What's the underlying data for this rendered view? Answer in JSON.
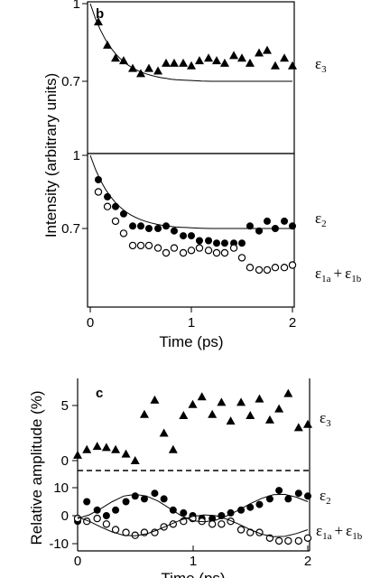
{
  "chart_data": [
    {
      "panel": "b",
      "type": "scatter",
      "x_unit": "ps",
      "xlim": [
        0,
        2
      ],
      "ylim": [
        0.5,
        1.0
      ],
      "x_ticks": [
        0,
        1,
        2
      ],
      "y_ticks": [
        0.7,
        1
      ],
      "ylabel": "Intensity (arbitrary units)",
      "xlabel": "Time (ps)",
      "sub": [
        {
          "ylim": [
            0.5,
            1.0
          ],
          "y_tick_labels": [
            "0.7",
            "1"
          ],
          "series": [
            {
              "name": "ε3",
              "label": "ε",
              "subscript": "3",
              "marker": "filled-triangle",
              "x": [
                0.08,
                0.17,
                0.25,
                0.33,
                0.42,
                0.5,
                0.58,
                0.67,
                0.75,
                0.83,
                0.92,
                1.0,
                1.08,
                1.17,
                1.25,
                1.33,
                1.42,
                1.5,
                1.58,
                1.67,
                1.75,
                1.83,
                1.92,
                2.0
              ],
              "y": [
                0.93,
                0.84,
                0.79,
                0.78,
                0.75,
                0.73,
                0.75,
                0.74,
                0.77,
                0.77,
                0.77,
                0.76,
                0.78,
                0.79,
                0.78,
                0.77,
                0.8,
                0.79,
                0.77,
                0.81,
                0.82,
                0.76,
                0.79,
                0.76
              ]
            },
            {
              "name": "fit",
              "line": true,
              "x": [
                0,
                0.05,
                0.1,
                0.15,
                0.2,
                0.25,
                0.3,
                0.35,
                0.4,
                0.45,
                0.5,
                0.55,
                0.6,
                0.65,
                0.7,
                0.75,
                0.8,
                0.85,
                0.9,
                0.95,
                1.0,
                1.1,
                1.2,
                1.3,
                1.4,
                1.5,
                1.6,
                1.7,
                1.8,
                1.9,
                2.0
              ],
              "y": [
                1.0,
                0.944,
                0.898,
                0.861,
                0.831,
                0.806,
                0.786,
                0.769,
                0.756,
                0.745,
                0.736,
                0.729,
                0.723,
                0.718,
                0.714,
                0.711,
                0.708,
                0.706,
                0.705,
                0.704,
                0.703,
                0.701,
                0.7,
                0.7,
                0.7,
                0.7,
                0.7,
                0.7,
                0.7,
                0.7,
                0.7
              ]
            }
          ]
        },
        {
          "ylim": [
            0.5,
            1.0
          ],
          "y_tick_labels": [
            "0.7",
            "1"
          ],
          "series": [
            {
              "name": "ε2",
              "label": "ε",
              "subscript": "2",
              "marker": "filled-circle",
              "x": [
                0.08,
                0.17,
                0.25,
                0.33,
                0.42,
                0.5,
                0.58,
                0.67,
                0.75,
                0.83,
                0.92,
                1.0,
                1.08,
                1.17,
                1.25,
                1.33,
                1.42,
                1.5,
                1.58,
                1.67,
                1.75,
                1.83,
                1.92,
                2.0
              ],
              "y": [
                0.9,
                0.83,
                0.79,
                0.76,
                0.71,
                0.71,
                0.7,
                0.7,
                0.71,
                0.69,
                0.67,
                0.67,
                0.65,
                0.65,
                0.64,
                0.64,
                0.64,
                0.64,
                0.71,
                0.69,
                0.73,
                0.7,
                0.73,
                0.71
              ],
              "style": "filled"
            },
            {
              "name": "ε1a + ε1b",
              "label": "ε",
              "subscript": "1a",
              "label2": "ε",
              "subscript2": "1b",
              "marker": "open-circle",
              "x": [
                0.08,
                0.17,
                0.25,
                0.33,
                0.42,
                0.5,
                0.58,
                0.67,
                0.75,
                0.83,
                0.92,
                1.0,
                1.08,
                1.17,
                1.25,
                1.33,
                1.42,
                1.5,
                1.58,
                1.67,
                1.75,
                1.83,
                1.92,
                2.0
              ],
              "y": [
                0.85,
                0.79,
                0.73,
                0.68,
                0.63,
                0.63,
                0.63,
                0.62,
                0.6,
                0.62,
                0.6,
                0.61,
                0.62,
                0.61,
                0.6,
                0.6,
                0.62,
                0.58,
                0.54,
                0.53,
                0.53,
                0.54,
                0.54,
                0.55
              ]
            },
            {
              "name": "fit",
              "line": true,
              "x": [
                0,
                0.05,
                0.1,
                0.15,
                0.2,
                0.25,
                0.3,
                0.35,
                0.4,
                0.45,
                0.5,
                0.55,
                0.6,
                0.65,
                0.7,
                0.75,
                0.8,
                0.85,
                0.9,
                0.95,
                1.0,
                1.1,
                1.2,
                1.3,
                1.4,
                1.5,
                1.6,
                1.7,
                1.8,
                1.9,
                2.0
              ],
              "y": [
                1.0,
                0.944,
                0.898,
                0.861,
                0.831,
                0.806,
                0.786,
                0.769,
                0.756,
                0.745,
                0.736,
                0.729,
                0.723,
                0.718,
                0.714,
                0.711,
                0.708,
                0.706,
                0.705,
                0.704,
                0.703,
                0.701,
                0.7,
                0.7,
                0.7,
                0.7,
                0.7,
                0.7,
                0.7,
                0.7,
                0.7
              ]
            }
          ]
        }
      ]
    },
    {
      "panel": "c",
      "type": "scatter",
      "x_unit": "ps",
      "xlim": [
        0,
        2
      ],
      "x_ticks": [
        0,
        1,
        2
      ],
      "ylabel": "Relative amplitude (%)",
      "xlabel": "Time (ps)",
      "sub": [
        {
          "ylim": [
            -1,
            7
          ],
          "y_ticks": [
            0,
            5
          ],
          "y_tick_labels": [
            "0",
            "5"
          ],
          "series": [
            {
              "name": "ε3",
              "label": "ε",
              "subscript": "3",
              "marker": "filled-triangle",
              "x": [
                0.0,
                0.08,
                0.17,
                0.25,
                0.33,
                0.42,
                0.5,
                0.58,
                0.67,
                0.75,
                0.83,
                0.92,
                1.0,
                1.08,
                1.17,
                1.25,
                1.33,
                1.42,
                1.5,
                1.58,
                1.67,
                1.75,
                1.83,
                1.92,
                2.0
              ],
              "y": [
                0.5,
                1.0,
                1.3,
                1.2,
                1.0,
                0.6,
                0.0,
                4.2,
                5.5,
                2.5,
                1.0,
                4.1,
                5.1,
                5.8,
                4.2,
                5.3,
                3.6,
                5.3,
                4.1,
                5.6,
                3.7,
                4.7,
                6.1,
                3.0,
                3.3
              ]
            }
          ]
        },
        {
          "ylim": [
            -10,
            12
          ],
          "y_ticks": [
            -10,
            0,
            10
          ],
          "y_tick_labels": [
            "-10",
            "0",
            "10"
          ],
          "series": [
            {
              "name": "ε2",
              "label": "ε",
              "subscript": "2",
              "marker": "filled-circle",
              "x": [
                0.0,
                0.08,
                0.17,
                0.25,
                0.33,
                0.42,
                0.5,
                0.58,
                0.67,
                0.75,
                0.83,
                0.92,
                1.0,
                1.08,
                1.17,
                1.25,
                1.33,
                1.42,
                1.5,
                1.58,
                1.67,
                1.75,
                1.83,
                1.92,
                2.0
              ],
              "y": [
                -2.0,
                5.0,
                2.0,
                0.0,
                2.0,
                5.0,
                7.0,
                6.0,
                8.0,
                6.0,
                2.0,
                1.0,
                0.0,
                -1.0,
                -1.0,
                0.0,
                1.0,
                2.0,
                3.0,
                4.0,
                6.0,
                9.0,
                6.0,
                8.0,
                7.0
              ]
            },
            {
              "name": "ε1a + ε1b",
              "label": "ε",
              "subscript": "1a",
              "label2": "ε",
              "subscript2": "1b",
              "marker": "open-circle",
              "x": [
                0.0,
                0.08,
                0.17,
                0.25,
                0.33,
                0.42,
                0.5,
                0.58,
                0.67,
                0.75,
                0.83,
                0.92,
                1.0,
                1.08,
                1.17,
                1.25,
                1.33,
                1.42,
                1.5,
                1.58,
                1.67,
                1.75,
                1.83,
                1.92,
                2.0
              ],
              "y": [
                -1.0,
                -2.0,
                -1.0,
                -3.0,
                -5.0,
                -6.0,
                -7.0,
                -6.0,
                -6.0,
                -4.0,
                -3.0,
                -2.0,
                -1.0,
                -2.0,
                -3.0,
                -3.0,
                -2.0,
                -5.0,
                -6.0,
                -6.0,
                -8.0,
                -9.0,
                -9.0,
                -9.0,
                -8.0
              ]
            },
            {
              "name": "fit-ε2",
              "line": true,
              "x": [
                0,
                0.1,
                0.2,
                0.3,
                0.4,
                0.5,
                0.6,
                0.7,
                0.8,
                0.9,
                1.0,
                1.1,
                1.2,
                1.3,
                1.4,
                1.5,
                1.6,
                1.7,
                1.8,
                1.9,
                2.0
              ],
              "y": [
                -1.0,
                0.3,
                2.5,
                5.0,
                7.0,
                7.6,
                7.0,
                5.2,
                2.6,
                0.0,
                -1.8,
                -2.2,
                -1.6,
                0.0,
                2.0,
                4.3,
                6.2,
                7.5,
                7.6,
                6.6,
                5.0
              ]
            },
            {
              "name": "fit-ε1",
              "line": true,
              "x": [
                0,
                0.1,
                0.2,
                0.3,
                0.4,
                0.5,
                0.6,
                0.7,
                0.8,
                0.9,
                1.0,
                1.1,
                1.2,
                1.3,
                1.4,
                1.5,
                1.6,
                1.7,
                1.8,
                1.9,
                2.0
              ],
              "y": [
                -0.5,
                -2.0,
                -4.0,
                -5.8,
                -7.0,
                -7.2,
                -6.5,
                -5.0,
                -3.2,
                -1.5,
                -0.3,
                0.3,
                0.0,
                -1.3,
                -3.0,
                -5.0,
                -6.6,
                -7.5,
                -7.4,
                -6.4,
                -5.0
              ]
            }
          ]
        }
      ]
    }
  ],
  "labels": {
    "b_letter": "b",
    "c_letter": "c",
    "b_top_y_tick_1": "1",
    "b_top_y_tick_07": "0.7",
    "b_bot_y_tick_1": "1",
    "b_bot_y_tick_07": "0.7",
    "b_x_tick_0": "0",
    "b_x_tick_1": "1",
    "b_x_tick_2": "2",
    "b_xlabel": "Time (ps)",
    "b_ylabel": "Intensity (arbitrary units)",
    "c_top_y_tick_5": "5",
    "c_top_y_tick_0": "0",
    "c_bot_y_tick_10": "10",
    "c_bot_y_tick_0": "0",
    "c_bot_y_tick_m10": "-10",
    "c_x_tick_0": "0",
    "c_x_tick_1": "1",
    "c_x_tick_2": "2",
    "c_xlabel": "Time (ps)",
    "c_ylabel": "Relative amplitude (%)",
    "eps": "ε",
    "sub_3": "3",
    "sub_2": "2",
    "sub_1a": "1a",
    "sub_1b": "1b",
    "plus": "+"
  }
}
